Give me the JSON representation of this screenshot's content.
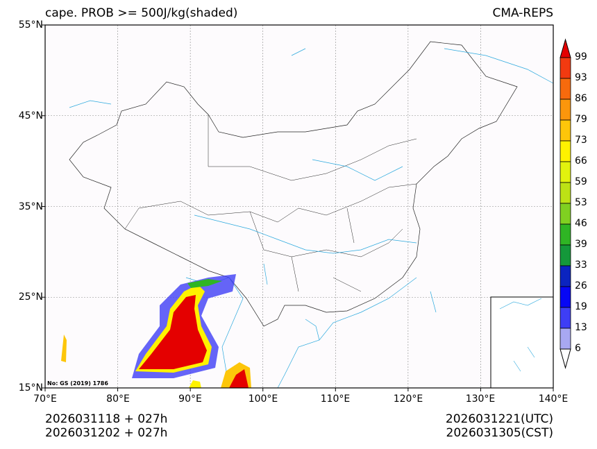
{
  "header": {
    "title": "cape. PROB >= 500J/kg(shaded)",
    "source": "CMA-REPS"
  },
  "axes": {
    "lat_labels": [
      "55°N",
      "45°N",
      "35°N",
      "25°N",
      "15°N"
    ],
    "lon_labels": [
      "70°E",
      "80°E",
      "90°E",
      "100°E",
      "110°E",
      "120°E",
      "130°E",
      "140°E"
    ]
  },
  "map_note": "No: GS (2019) 1786",
  "footer": {
    "init_utc": "2026031118  +  027h",
    "init_cst": "2026031202  +  027h",
    "valid_utc": "2026031221(UTC)",
    "valid_cst": "2026031305(CST)"
  },
  "colorbar": {
    "labels": [
      "99",
      "93",
      "86",
      "79",
      "73",
      "66",
      "59",
      "53",
      "46",
      "39",
      "33",
      "26",
      "19",
      "13",
      "6"
    ],
    "colors": [
      "#f23a10",
      "#f76a0d",
      "#fb960c",
      "#fdc60a",
      "#fff200",
      "#e2f20e",
      "#bde215",
      "#80d021",
      "#2fb524",
      "#14983a",
      "#0b24c0",
      "#0707f5",
      "#3e3ef5",
      "#a8a8f2"
    ],
    "over_color": "#e40000",
    "under_color": "#ffffff"
  },
  "chart_data": {
    "type": "heatmap",
    "title": "cape. PROB >= 500J/kg(shaded)",
    "xlim": [
      70,
      140
    ],
    "ylim": [
      15,
      55
    ],
    "xlabel": "",
    "ylabel": "",
    "levels": [
      6,
      13,
      19,
      26,
      33,
      39,
      46,
      53,
      59,
      66,
      73,
      79,
      86,
      93,
      99
    ],
    "grid": true,
    "legend": "right colorbar"
  }
}
